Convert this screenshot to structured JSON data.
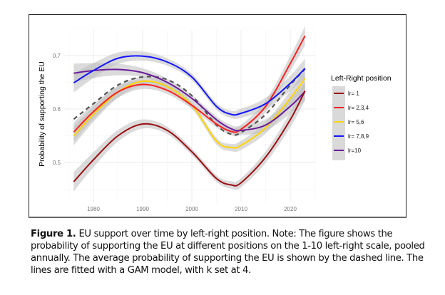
{
  "chart_data": {
    "type": "line",
    "title": "",
    "xlabel": "",
    "ylabel": "Probability of supporting the EU",
    "xlim": [
      1972,
      2026
    ],
    "ylim": [
      0.44,
      0.76
    ],
    "xticks": [
      1980,
      1990,
      2000,
      2010,
      2020
    ],
    "yticks": [
      0.5,
      0.6,
      0.7
    ],
    "xtick_labels": [
      "1980",
      "1990",
      "2000",
      "2010",
      "2020"
    ],
    "ytick_labels": [
      "0.5",
      "0.6",
      "0.7"
    ],
    "grid": true,
    "legend": {
      "title": "Left-Right position",
      "placement": "right"
    },
    "x": [
      1976,
      1980,
      1985,
      1990,
      1995,
      2000,
      2005,
      2008,
      2010,
      2015,
      2020,
      2023
    ],
    "series": [
      {
        "name": "lr= 1",
        "color": "#9B0E12",
        "ci": true,
        "values": [
          0.464,
          0.505,
          0.55,
          0.572,
          0.56,
          0.52,
          0.47,
          0.458,
          0.462,
          0.51,
          0.58,
          0.634
        ]
      },
      {
        "name": "lr= 2,3,4",
        "color": "#FF2020",
        "ci": false,
        "values": [
          0.557,
          0.595,
          0.632,
          0.646,
          0.635,
          0.607,
          0.572,
          0.558,
          0.562,
          0.605,
          0.685,
          0.737
        ]
      },
      {
        "name": "lr= 5,6",
        "color": "#FFD400",
        "ci": false,
        "values": [
          0.55,
          0.59,
          0.632,
          0.652,
          0.642,
          0.607,
          0.54,
          0.528,
          0.532,
          0.565,
          0.62,
          0.657
        ]
      },
      {
        "name": "lr= 7,8,9",
        "color": "#1414FF",
        "ci": false,
        "values": [
          0.649,
          0.672,
          0.695,
          0.699,
          0.688,
          0.66,
          0.605,
          0.59,
          0.592,
          0.61,
          0.648,
          0.676
        ]
      },
      {
        "name": "lr=10",
        "color": "#6A1B9A",
        "ci": true,
        "values": [
          0.667,
          0.672,
          0.674,
          0.668,
          0.65,
          0.62,
          0.58,
          0.563,
          0.56,
          0.57,
          0.605,
          0.633
        ]
      }
    ],
    "average": {
      "name": "average",
      "color": "#555555",
      "dashed": true,
      "values": [
        0.581,
        0.61,
        0.645,
        0.66,
        0.655,
        0.625,
        0.57,
        0.553,
        0.556,
        0.59,
        0.645,
        0.675
      ]
    }
  },
  "caption": {
    "label": "Figure 1.",
    "text": "EU support over time by left-right position. Note: The figure shows the probability of supporting the EU at different positions on the 1-10 left-right scale, pooled annually. The average probability of supporting the EU is shown by the dashed line. The lines are fitted with a GAM model, with k set at 4."
  }
}
